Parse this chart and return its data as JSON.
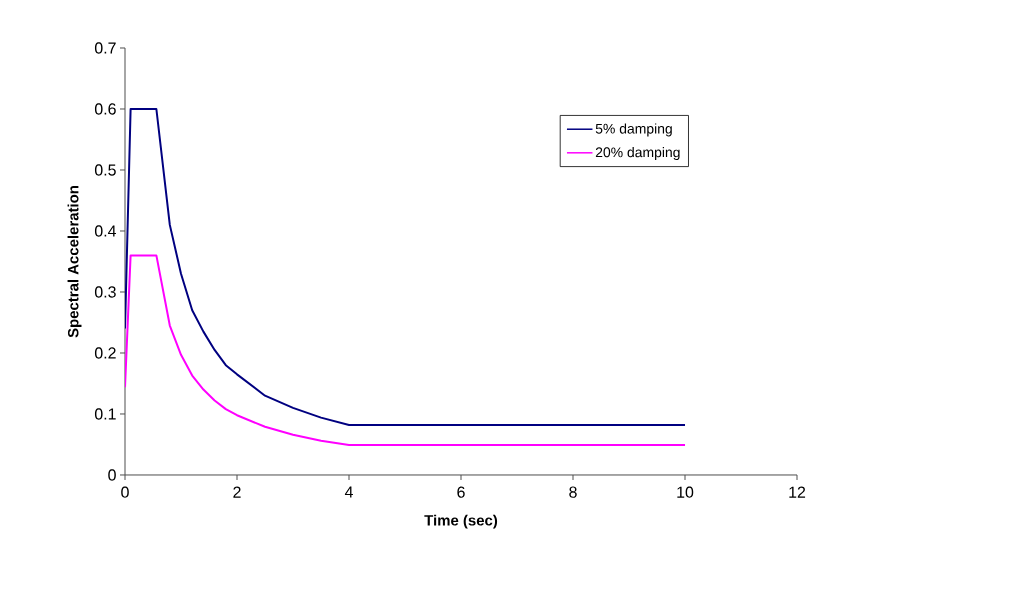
{
  "chart_data": {
    "type": "line",
    "xlabel": "Time (sec)",
    "ylabel": "Spectral Acceleration",
    "xlim": [
      0,
      12
    ],
    "xticks": [
      0,
      2,
      4,
      6,
      8,
      10,
      12
    ],
    "ylim": [
      0,
      0.7
    ],
    "yticks": [
      0,
      0.1,
      0.2,
      0.3,
      0.4,
      0.5,
      0.6,
      0.7
    ],
    "grid": false,
    "legend": "top right",
    "marker": "none",
    "line_style": "solid",
    "series": [
      {
        "name": "5% damping",
        "color": "#000080",
        "x": [
          0,
          0.1,
          0.56,
          0.8,
          1.0,
          1.2,
          1.4,
          1.6,
          1.8,
          2.0,
          2.5,
          3.0,
          3.5,
          4.0,
          10
        ],
        "values": [
          0.24,
          0.6,
          0.6,
          0.41,
          0.33,
          0.27,
          0.235,
          0.205,
          0.18,
          0.165,
          0.13,
          0.11,
          0.094,
          0.082,
          0.082
        ]
      },
      {
        "name": "20% damping",
        "color": "#ff00ff",
        "x": [
          0,
          0.1,
          0.56,
          0.8,
          1.0,
          1.2,
          1.4,
          1.6,
          1.8,
          2.0,
          2.5,
          3.0,
          3.5,
          4.0,
          10
        ],
        "values": [
          0.144,
          0.36,
          0.36,
          0.245,
          0.197,
          0.163,
          0.14,
          0.122,
          0.108,
          0.098,
          0.079,
          0.066,
          0.056,
          0.049,
          0.049
        ]
      }
    ]
  }
}
